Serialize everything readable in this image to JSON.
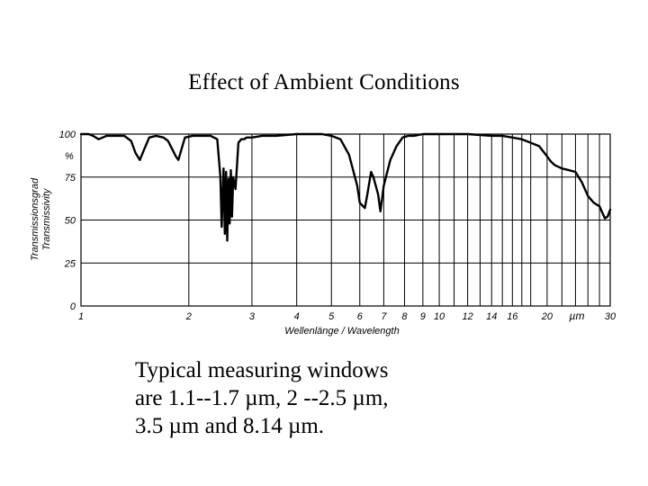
{
  "slide": {
    "title": "Effect of Ambient Conditions",
    "caption_lines": [
      "Typical measuring windows",
      "are 1.1--1.7 µm, 2 --2.5 µm,",
      "3.5 µm and 8.14 µm."
    ]
  },
  "chart_data": {
    "type": "line",
    "title": "",
    "xlabel": "Wellenlänge / Wavelength",
    "ylabel_lines": [
      "Transmissionsgrad",
      "Transmissivity"
    ],
    "y_unit": "%",
    "x_unit": "µm",
    "x_scale": "log",
    "xlim": [
      1,
      30
    ],
    "ylim": [
      0,
      100
    ],
    "grid": true,
    "y_ticks": [
      {
        "value": 100,
        "label": "100"
      },
      {
        "value": 75,
        "label": "75"
      },
      {
        "value": 50,
        "label": "50"
      },
      {
        "value": 25,
        "label": "25"
      },
      {
        "value": 0,
        "label": "0"
      }
    ],
    "x_ticks": [
      {
        "value": 1,
        "label": "1"
      },
      {
        "value": 2,
        "label": "2"
      },
      {
        "value": 3,
        "label": "3"
      },
      {
        "value": 4,
        "label": "4"
      },
      {
        "value": 5,
        "label": "5"
      },
      {
        "value": 6,
        "label": "6"
      },
      {
        "value": 7,
        "label": "7"
      },
      {
        "value": 8,
        "label": "8"
      },
      {
        "value": 9,
        "label": "9"
      },
      {
        "value": 10,
        "label": "10"
      },
      {
        "value": 12,
        "label": "12"
      },
      {
        "value": 14,
        "label": "14"
      },
      {
        "value": 16,
        "label": "16"
      },
      {
        "value": 20,
        "label": "20"
      },
      {
        "value": 30,
        "label": "30"
      }
    ],
    "x_gridlines": [
      1,
      2,
      3,
      4,
      5,
      6,
      7,
      8,
      9,
      10,
      11,
      12,
      13,
      14,
      15,
      16,
      17,
      18,
      20,
      22,
      24,
      26,
      28,
      30
    ],
    "series": [
      {
        "x": [
          1.0,
          1.05,
          1.08,
          1.12,
          1.18,
          1.25,
          1.32,
          1.38,
          1.42,
          1.46,
          1.5,
          1.55,
          1.62,
          1.7,
          1.75,
          1.8,
          1.84,
          1.87,
          1.9,
          1.95,
          2.05,
          2.2,
          2.3,
          2.4,
          2.45,
          2.47,
          2.5,
          2.52,
          2.54,
          2.56,
          2.58,
          2.6,
          2.62,
          2.64,
          2.66,
          2.7,
          2.75,
          2.8,
          2.85,
          2.9,
          3.0,
          3.2,
          3.5,
          4.0,
          4.3,
          4.7,
          5.0,
          5.3,
          5.6,
          5.9,
          6.0,
          6.2,
          6.3,
          6.45,
          6.55,
          6.75,
          6.85,
          7.0,
          7.3,
          7.6,
          7.9,
          8.2,
          8.5,
          9.0,
          9.5,
          10.0,
          12.0,
          14.0,
          15.0,
          16.0,
          17.0,
          18.0,
          19.0,
          20.0,
          20.5,
          21.0,
          22.0,
          23.0,
          24.0,
          25.0,
          26.0,
          27.0,
          28.0,
          29.0,
          29.5,
          30.0
        ],
        "y": [
          100,
          100,
          99,
          97,
          99,
          99,
          99,
          96,
          89,
          85,
          91,
          98,
          99,
          98,
          96,
          91,
          87,
          85,
          90,
          98,
          99,
          99,
          99,
          97,
          75,
          46,
          80,
          42,
          78,
          38,
          74,
          48,
          79,
          52,
          75,
          68,
          95,
          97,
          97,
          98,
          98,
          99,
          99,
          100,
          100,
          100,
          99,
          97,
          88,
          70,
          60,
          57,
          65,
          78,
          75,
          65,
          55,
          70,
          85,
          93,
          98,
          99,
          99,
          100,
          100,
          100,
          100,
          99,
          99,
          98,
          97,
          95,
          93,
          87,
          84,
          82,
          80,
          79,
          78,
          72,
          64,
          60,
          58,
          51,
          52,
          56
        ]
      }
    ]
  }
}
